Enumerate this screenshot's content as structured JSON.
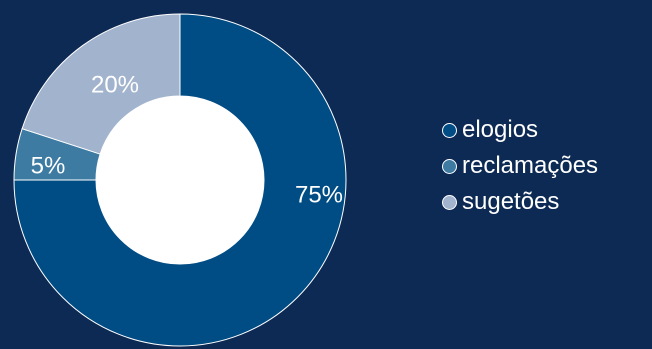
{
  "chart_data": {
    "type": "pie",
    "title": "",
    "categories": [
      "elogios",
      "reclamações",
      "sugetões"
    ],
    "values": [
      75,
      5,
      20
    ],
    "value_labels": [
      "75%",
      "5%",
      "20%"
    ],
    "colors": [
      "#004c84",
      "#3d7ba3",
      "#a2b3cd"
    ],
    "hole": "donut",
    "legend_position": "right"
  },
  "legend": {
    "items": [
      {
        "label": "elogios",
        "color": "#004c84"
      },
      {
        "label": "reclamações",
        "color": "#3d7ba3"
      },
      {
        "label": "sugetões",
        "color": "#a2b3cd"
      }
    ]
  },
  "background_color": "#0d2a54"
}
